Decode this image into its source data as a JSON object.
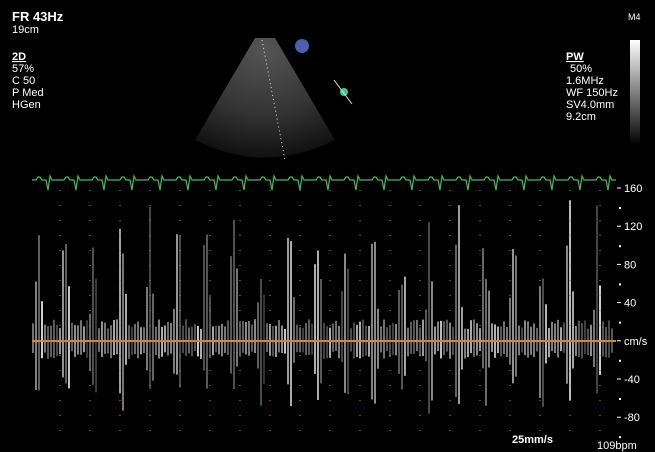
{
  "top_left": {
    "frame_rate": "FR 43Hz",
    "depth": "19cm",
    "mode": "2D",
    "gain": "57%",
    "contrast": "C 50",
    "power": "P Med",
    "freq": "HGen"
  },
  "top_right": {
    "probe": "M4",
    "mode": "PW",
    "gain": "50%",
    "freq": "1.6MHz",
    "wall_filter": "WF 150Hz",
    "sample_volume": "SV4.0mm",
    "depth": "9.2cm"
  },
  "velocity_scale": {
    "labels": [
      "160",
      "120",
      "80",
      "40",
      "cm/s",
      "-40",
      "-80"
    ]
  },
  "sweep_speed": "25mm/s",
  "heart_rate": "109bpm"
}
